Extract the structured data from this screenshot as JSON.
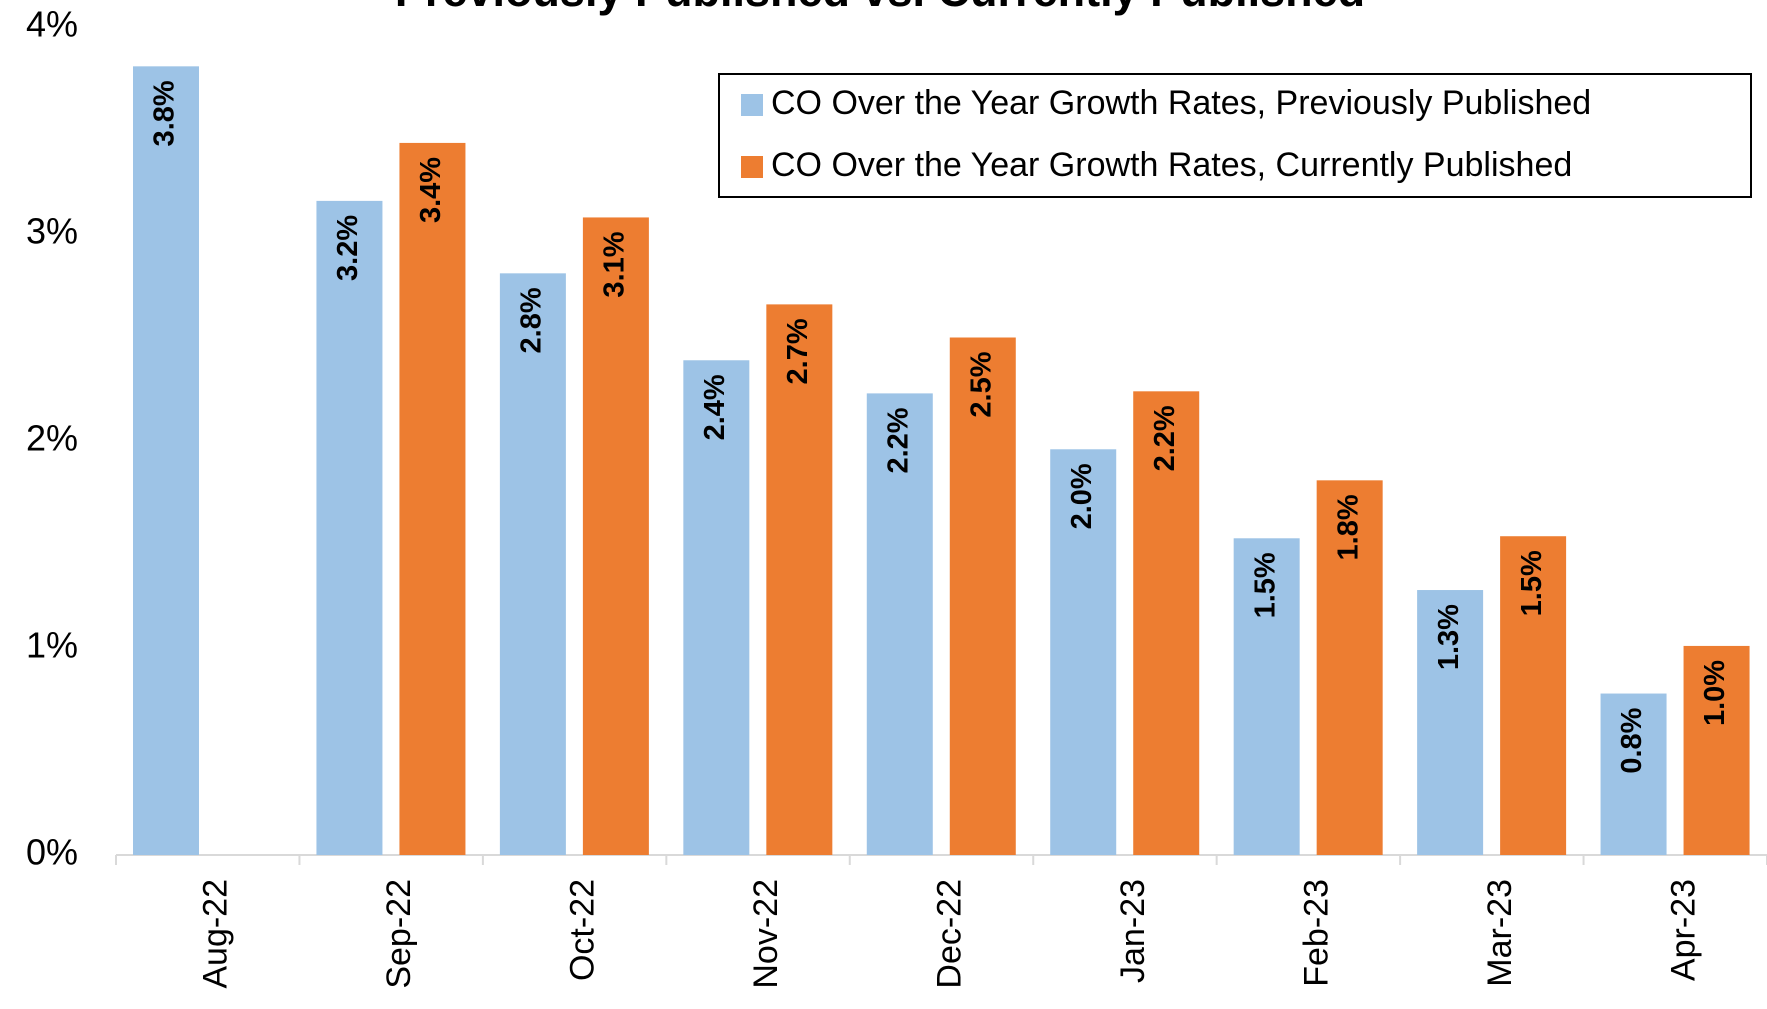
{
  "chart_data": {
    "type": "bar",
    "title": "Previously Published vs. Currently Published",
    "categories": [
      "Aug-22",
      "Sep-22",
      "Oct-22",
      "Nov-22",
      "Dec-22",
      "Jan-23",
      "Feb-23",
      "Mar-23",
      "Apr-23"
    ],
    "series": [
      {
        "name": "CO Over the Year Growth Rates, Previously Published",
        "color": "#9dc3e6",
        "values": [
          3.81,
          3.16,
          2.81,
          2.39,
          2.23,
          1.96,
          1.53,
          1.28,
          0.78
        ],
        "value_labels": [
          "3.8%",
          "3.2%",
          "2.8%",
          "2.4%",
          "2.2%",
          "2.0%",
          "1.5%",
          "1.3%",
          "0.8%"
        ]
      },
      {
        "name": "CO Over the Year Growth Rates, Currently Published",
        "color": "#ed7d31",
        "values": [
          null,
          3.44,
          3.08,
          2.66,
          2.5,
          2.24,
          1.81,
          1.54,
          1.01
        ],
        "value_labels": [
          null,
          "3.4%",
          "3.1%",
          "2.7%",
          "2.5%",
          "2.2%",
          "1.8%",
          "1.5%",
          "1.0%"
        ]
      }
    ],
    "ylim": [
      0,
      4
    ],
    "yticks": [
      {
        "value": 0,
        "label": "0%"
      },
      {
        "value": 1,
        "label": "1%"
      },
      {
        "value": 2,
        "label": "2%"
      },
      {
        "value": 3,
        "label": "3%"
      },
      {
        "value": 4,
        "label": "4%"
      }
    ],
    "legend": "top-right"
  }
}
